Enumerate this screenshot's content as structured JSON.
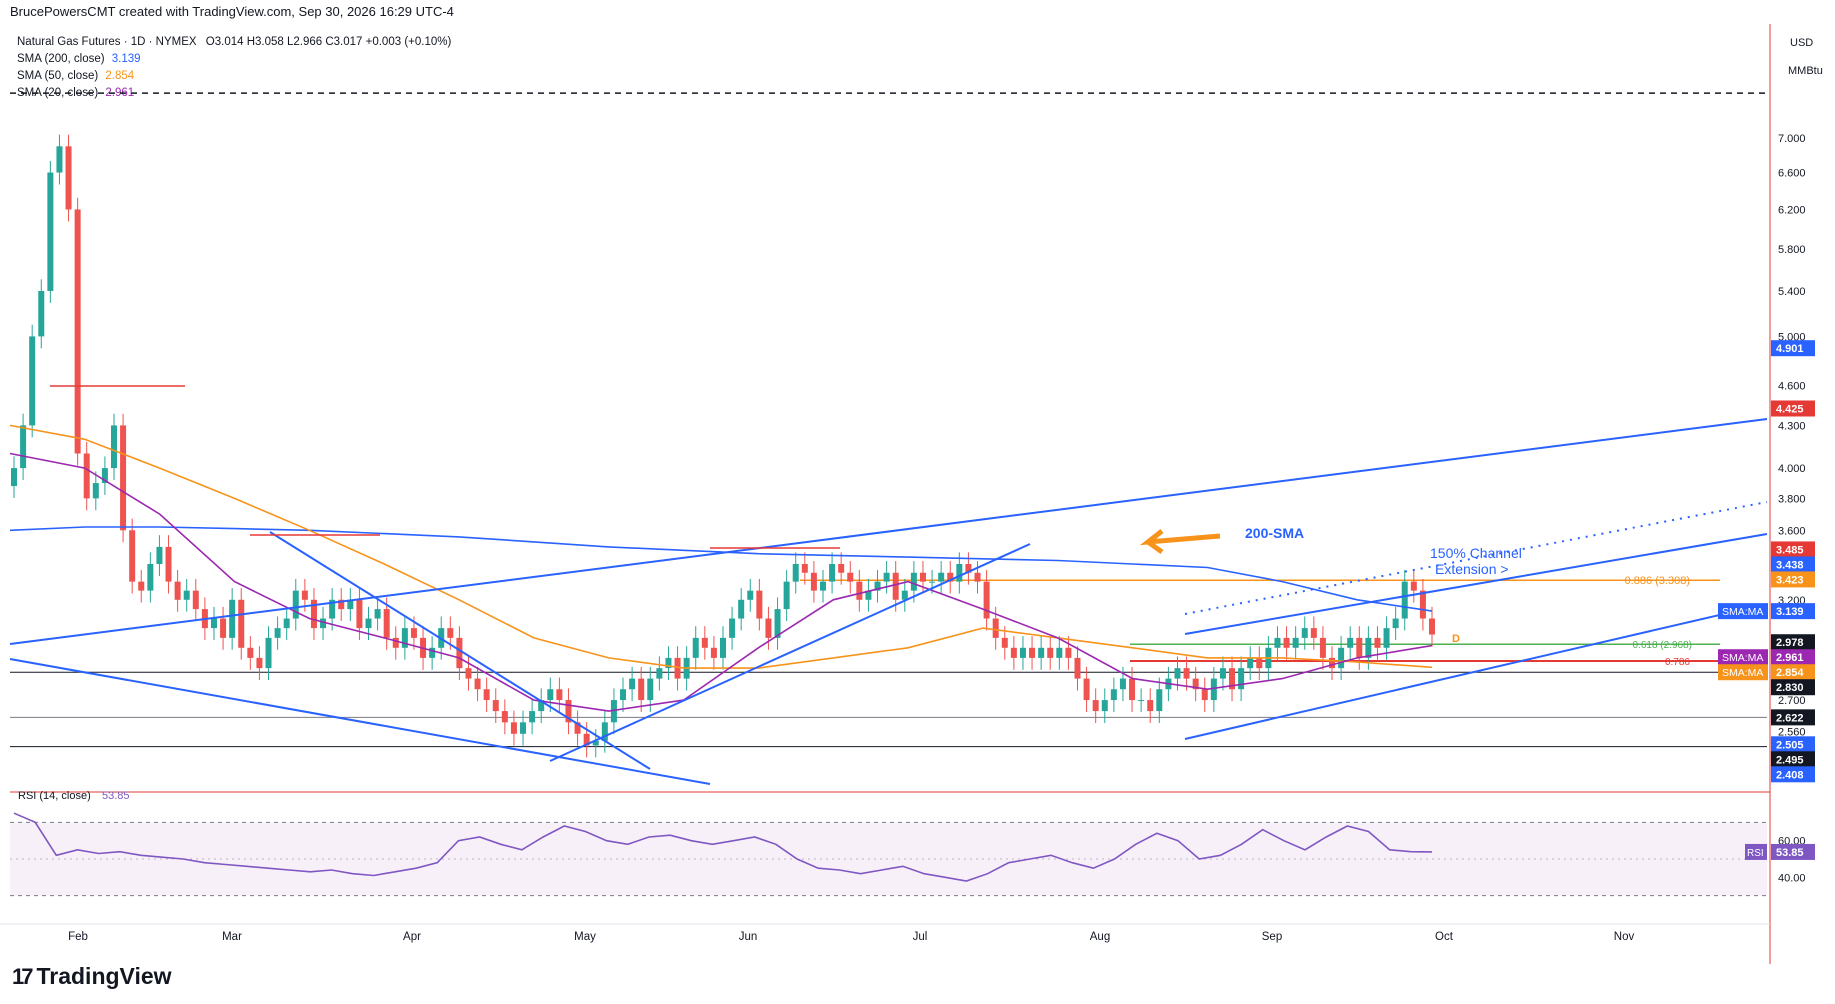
{
  "header": {
    "text": "BrucePowersCMT created with TradingView.com, Sep 30, 2026 16:29 UTC-4"
  },
  "legend": {
    "symbol": "Natural Gas Futures · 1D · NYMEX",
    "ohlc": "O3.014  H3.058  L2.966  C3.017  +0.003 (+0.10%)",
    "sma200": {
      "label": "SMA (200, close)",
      "value": "3.139"
    },
    "sma50": {
      "label": "SMA (50, close)",
      "value": "2.854"
    },
    "sma20": {
      "label": "SMA (20, close)",
      "value": "2.961"
    },
    "rsi": {
      "label": "RSI (14, close)",
      "value": "53.85"
    }
  },
  "brand": {
    "logo_text": "TradingView"
  },
  "colors": {
    "blue": "#2962ff",
    "orange": "#f7931a",
    "purple": "#9c27b0",
    "red": "#e53935",
    "green": "#4caf50",
    "up": "#26a69a",
    "down": "#ef5350"
  },
  "chart_data": {
    "type": "candlestick",
    "price_axis": {
      "unit_top": "USD",
      "unit_bottom": "MMBtu",
      "ticks": [
        "7.000",
        "6.600",
        "6.200",
        "5.800",
        "5.400",
        "5.000",
        "4.600",
        "4.300",
        "4.000",
        "3.800",
        "3.600",
        "3.200",
        "2.700",
        "2.560"
      ],
      "scale": "log",
      "range": [
        2.35,
        8.0
      ]
    },
    "time_axis": {
      "labels": [
        "Feb",
        "Mar",
        "Apr",
        "May",
        "Jun",
        "Jul",
        "Aug",
        "Sep",
        "Oct",
        "Nov"
      ]
    },
    "price_badges": [
      {
        "value": "4.901",
        "color": "#2962ff"
      },
      {
        "value": "4.425",
        "color": "#e53935"
      },
      {
        "value": "3.485",
        "color": "#e53935"
      },
      {
        "value": "3.438",
        "color": "#2962ff"
      },
      {
        "value": "3.423",
        "color": "#f7931a"
      },
      {
        "value": "3.139",
        "label": "SMA:MA",
        "color": "#2962ff"
      },
      {
        "value": "2.978",
        "color": "#131722"
      },
      {
        "value": "2.961",
        "label": "SMA:MA",
        "color": "#9c27b0"
      },
      {
        "value": "2.854",
        "label": "SMA:MA",
        "color": "#f7931a"
      },
      {
        "value": "2.830",
        "color": "#131722"
      },
      {
        "value": "2.622",
        "color": "#131722"
      },
      {
        "value": "2.505",
        "color": "#2962ff"
      },
      {
        "value": "2.495",
        "color": "#131722"
      },
      {
        "value": "2.408",
        "color": "#2962ff"
      }
    ],
    "annotations": [
      {
        "text": "200-SMA",
        "color": "#2962ff"
      },
      {
        "text": "150% Channel",
        "color": "#2962ff"
      },
      {
        "text": "Extension >",
        "color": "#2962ff"
      },
      {
        "text": "0.886 (3.308)",
        "color": "#f7931a"
      },
      {
        "text": "0.618 (2.968)",
        "color": "#4caf50"
      },
      {
        "text": "0.786",
        "color": "#e53935"
      },
      {
        "text": "D",
        "color": "#f7931a"
      }
    ],
    "fib_levels": [
      {
        "ratio": "0.886",
        "price": 3.308
      },
      {
        "ratio": "0.618",
        "price": 2.968
      },
      {
        "ratio": "0.786",
        "price": 2.885
      }
    ],
    "horizontal_levels": [
      2.83,
      2.622,
      2.495,
      7.55
    ],
    "closes": [
      4.0,
      4.3,
      5.0,
      5.4,
      6.6,
      6.9,
      6.2,
      4.1,
      3.8,
      3.9,
      4.0,
      4.3,
      3.6,
      3.3,
      3.25,
      3.4,
      3.5,
      3.3,
      3.2,
      3.25,
      3.15,
      3.05,
      3.1,
      3.0,
      3.2,
      2.95,
      2.9,
      2.85,
      3.0,
      3.05,
      3.1,
      3.25,
      3.2,
      3.05,
      3.1,
      3.2,
      3.15,
      3.2,
      3.05,
      3.1,
      3.15,
      3.0,
      2.95,
      3.05,
      3.0,
      2.9,
      2.95,
      3.05,
      3.0,
      2.85,
      2.8,
      2.75,
      2.7,
      2.65,
      2.6,
      2.55,
      2.6,
      2.65,
      2.7,
      2.75,
      2.7,
      2.6,
      2.55,
      2.5,
      2.52,
      2.6,
      2.7,
      2.75,
      2.8,
      2.7,
      2.8,
      2.85,
      2.9,
      2.8,
      2.9,
      3.0,
      2.95,
      2.9,
      3.0,
      3.1,
      3.2,
      3.25,
      3.1,
      3.0,
      3.15,
      3.3,
      3.4,
      3.35,
      3.25,
      3.3,
      3.4,
      3.35,
      3.3,
      3.2,
      3.25,
      3.3,
      3.35,
      3.2,
      3.25,
      3.35,
      3.3,
      3.3,
      3.35,
      3.3,
      3.4,
      3.35,
      3.3,
      3.1,
      3.0,
      2.95,
      2.9,
      2.95,
      2.9,
      2.95,
      2.9,
      2.95,
      2.9,
      2.8,
      2.7,
      2.65,
      2.7,
      2.75,
      2.8,
      2.7,
      2.7,
      2.65,
      2.75,
      2.8,
      2.85,
      2.8,
      2.75,
      2.7,
      2.8,
      2.85,
      2.75,
      2.85,
      2.9,
      2.85,
      2.95,
      3.0,
      2.95,
      3.0,
      3.05,
      3.0,
      2.9,
      2.85,
      2.95,
      3.0,
      2.9,
      3.0,
      2.95,
      3.05,
      3.1,
      3.3,
      3.25,
      3.1,
      3.017
    ],
    "sma200": {
      "name": "SMA (200, close)",
      "values": [
        3.6,
        3.62,
        3.62,
        3.61,
        3.6,
        3.58,
        3.56,
        3.53,
        3.5,
        3.48,
        3.46,
        3.45,
        3.44,
        3.43,
        3.42,
        3.4,
        3.38,
        3.3,
        3.2,
        3.139
      ]
    },
    "sma50": {
      "name": "SMA (50, close)",
      "values": [
        4.3,
        4.2,
        4.0,
        3.8,
        3.6,
        3.4,
        3.2,
        3.0,
        2.9,
        2.85,
        2.85,
        2.9,
        2.95,
        3.05,
        3.0,
        2.95,
        2.9,
        2.9,
        2.88,
        2.854
      ]
    },
    "sma20": {
      "name": "SMA (20, close)",
      "values": [
        4.1,
        4.0,
        3.7,
        3.3,
        3.1,
        3.0,
        2.9,
        2.7,
        2.65,
        2.7,
        2.95,
        3.2,
        3.3,
        3.15,
        3.0,
        2.8,
        2.75,
        2.8,
        2.9,
        2.961
      ]
    },
    "rsi": {
      "name": "RSI (14, close)",
      "levels": [
        70,
        30
      ],
      "ticks": [
        "60.00",
        "40.00"
      ],
      "values": [
        75,
        70,
        52,
        55,
        53,
        54,
        52,
        51,
        50,
        48,
        47,
        46,
        45,
        44,
        43,
        44,
        42,
        41,
        43,
        45,
        48,
        60,
        62,
        58,
        55,
        62,
        68,
        65,
        60,
        58,
        62,
        63,
        60,
        58,
        60,
        62,
        58,
        50,
        45,
        44,
        42,
        44,
        46,
        42,
        40,
        38,
        42,
        48,
        50,
        52,
        48,
        45,
        50,
        58,
        64,
        60,
        50,
        52,
        58,
        66,
        60,
        55,
        62,
        68,
        65,
        55,
        54,
        53.85
      ]
    }
  }
}
